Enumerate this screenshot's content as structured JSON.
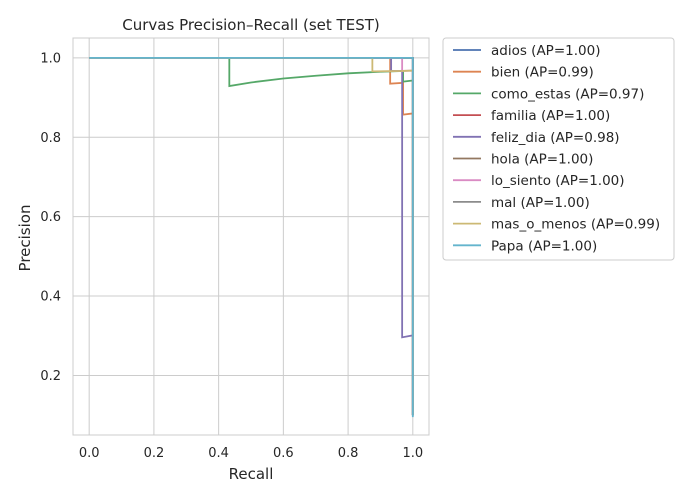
{
  "chart_data": {
    "type": "line",
    "title": "Curvas Precision–Recall (set TEST)",
    "xlabel": "Recall",
    "ylabel": "Precision",
    "xlim": [
      -0.05,
      1.05
    ],
    "ylim": [
      0.05,
      1.05
    ],
    "xticks": [
      "0.0",
      "0.2",
      "0.4",
      "0.6",
      "0.8",
      "1.0"
    ],
    "yticks": [
      "0.2",
      "0.4",
      "0.6",
      "0.8",
      "1.0"
    ],
    "grid": true,
    "legend_position": "outside-right",
    "series": [
      {
        "name": "adios  (AP=1.00)",
        "color": "#4c72b0",
        "x": [
          0,
          1.0,
          1.0
        ],
        "y": [
          1.0,
          1.0,
          0.1
        ]
      },
      {
        "name": "bien  (AP=0.99)",
        "color": "#dd8452",
        "x": [
          0,
          0.93,
          0.93,
          0.97,
          0.97,
          1.0,
          1.0
        ],
        "y": [
          1.0,
          1.0,
          0.935,
          0.937,
          0.857,
          0.86,
          0.1
        ]
      },
      {
        "name": "como_estas  (AP=0.97)",
        "color": "#55a868",
        "x": [
          0,
          0.433,
          0.433,
          0.5,
          0.6,
          0.7,
          0.8,
          0.9,
          0.97,
          0.97,
          1.0,
          1.0
        ],
        "y": [
          1.0,
          1.0,
          0.929,
          0.938,
          0.948,
          0.955,
          0.961,
          0.965,
          0.967,
          0.94,
          0.943,
          0.1
        ]
      },
      {
        "name": "familia  (AP=1.00)",
        "color": "#c44e52",
        "x": [
          0,
          1.0,
          1.0
        ],
        "y": [
          1.0,
          1.0,
          0.1
        ]
      },
      {
        "name": "feliz_dia  (AP=0.98)",
        "color": "#8172b3",
        "x": [
          0,
          0.933,
          0.933,
          0.967,
          0.967,
          0.967,
          0.967,
          1.0,
          1.0
        ],
        "y": [
          1.0,
          1.0,
          0.967,
          0.967,
          0.97,
          0.296,
          0.296,
          0.301,
          0.1
        ]
      },
      {
        "name": "hola  (AP=1.00)",
        "color": "#937860",
        "x": [
          0,
          1.0,
          1.0
        ],
        "y": [
          1.0,
          1.0,
          0.1
        ]
      },
      {
        "name": "lo_siento  (AP=1.00)",
        "color": "#da8bc3",
        "x": [
          0,
          0.967,
          0.967,
          1.0,
          1.0
        ],
        "y": [
          1.0,
          1.0,
          0.967,
          0.968,
          0.1
        ]
      },
      {
        "name": "mal  (AP=1.00)",
        "color": "#8c8c8c",
        "x": [
          0,
          1.0,
          1.0
        ],
        "y": [
          1.0,
          1.0,
          0.1
        ]
      },
      {
        "name": "mas_o_menos  (AP=0.99)",
        "color": "#ccb974",
        "x": [
          0,
          0.875,
          0.875,
          0.97,
          1.0,
          1.0
        ],
        "y": [
          1.0,
          1.0,
          0.966,
          0.967,
          0.968,
          0.1
        ]
      },
      {
        "name": "Papa  (AP=1.00)",
        "color": "#64b5cd",
        "x": [
          0,
          1.0,
          1.0
        ],
        "y": [
          1.0,
          1.0,
          0.095
        ]
      }
    ]
  }
}
